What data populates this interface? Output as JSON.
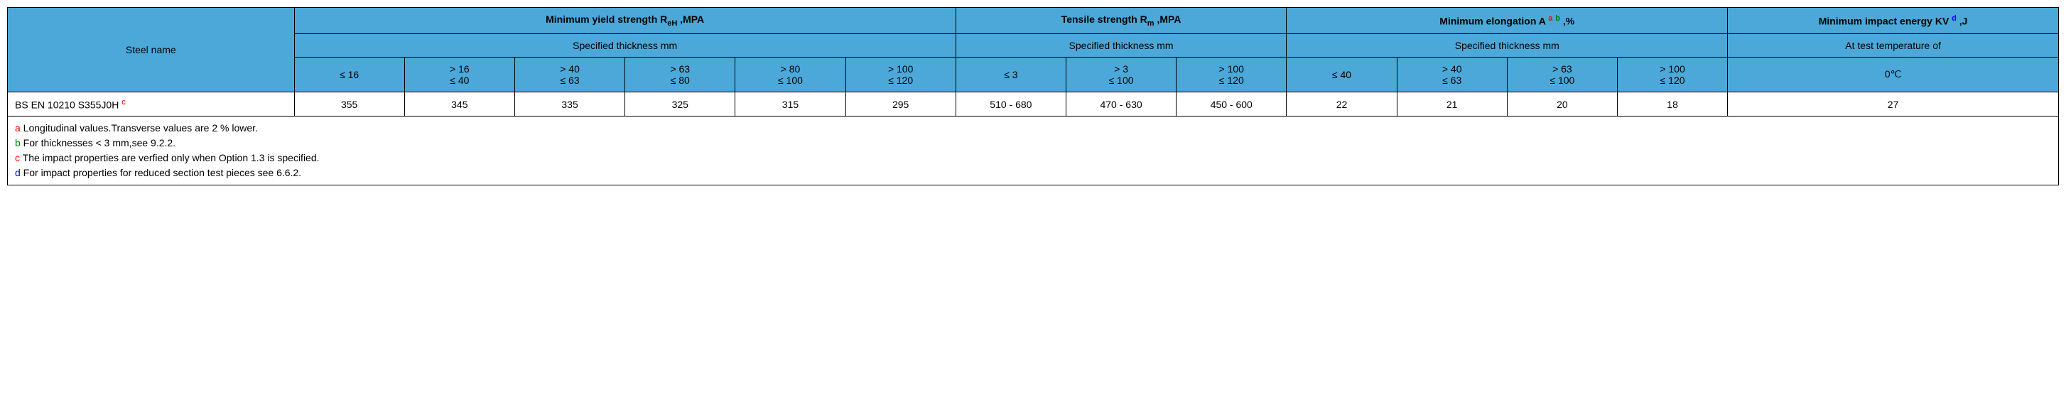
{
  "colors": {
    "header_bg": "#4ba8d8",
    "border": "#000000",
    "body_bg": "#ffffff",
    "fn_a": "#ff0000",
    "fn_b": "#008000",
    "fn_c": "#ff0000",
    "fn_d": "#0000ff"
  },
  "headers": {
    "steel_name": "Steel name",
    "yield": {
      "pre": "Minimum yield strength R",
      "sub": "eH",
      "post": " ,MPA"
    },
    "tensile": {
      "pre": "Tensile strength R",
      "sub": "m",
      "post": " ,MPA"
    },
    "elongation": {
      "pre": "Minimum elongation A ",
      "sup_a": "a",
      "sup_b": "b",
      "post": " ,%"
    },
    "impact": {
      "pre": "Minimum impact energy KV ",
      "sup_d": "d",
      "post": " ,J"
    },
    "spec_thickness": "Specified thickness mm",
    "at_temp": "At test temperature of"
  },
  "thickness": {
    "yield": [
      "≤ 16",
      "> 16\n≤ 40",
      "> 40\n≤ 63",
      "> 63\n≤ 80",
      "> 80\n≤ 100",
      "> 100\n≤ 120"
    ],
    "tensile": [
      "≤ 3",
      "> 3\n≤ 100",
      "> 100\n≤ 120"
    ],
    "elongation": [
      "≤ 40",
      "> 40\n≤ 63",
      "> 63\n≤ 100",
      "> 100\n≤ 120"
    ],
    "impact": "0℃"
  },
  "row": {
    "name": "BS EN 10210 S355J0H ",
    "name_sup": "c",
    "yield": [
      "355",
      "345",
      "335",
      "325",
      "315",
      "295"
    ],
    "tensile": [
      "510 - 680",
      "470 - 630",
      "450 - 600"
    ],
    "elongation": [
      "22",
      "21",
      "20",
      "18"
    ],
    "impact": "27"
  },
  "footnotes": {
    "a": {
      "label": "a",
      "text": " Longitudinal values.Transverse values are 2 % lower."
    },
    "b": {
      "label": "b",
      "text": " For thicknesses < 3 mm,see 9.2.2."
    },
    "c": {
      "label": "c",
      "text": " The impact properties are verfied only when Option 1.3 is specified."
    },
    "d": {
      "label": "d",
      "text": " For impact properties for reduced section test pieces see 6.6.2."
    }
  }
}
